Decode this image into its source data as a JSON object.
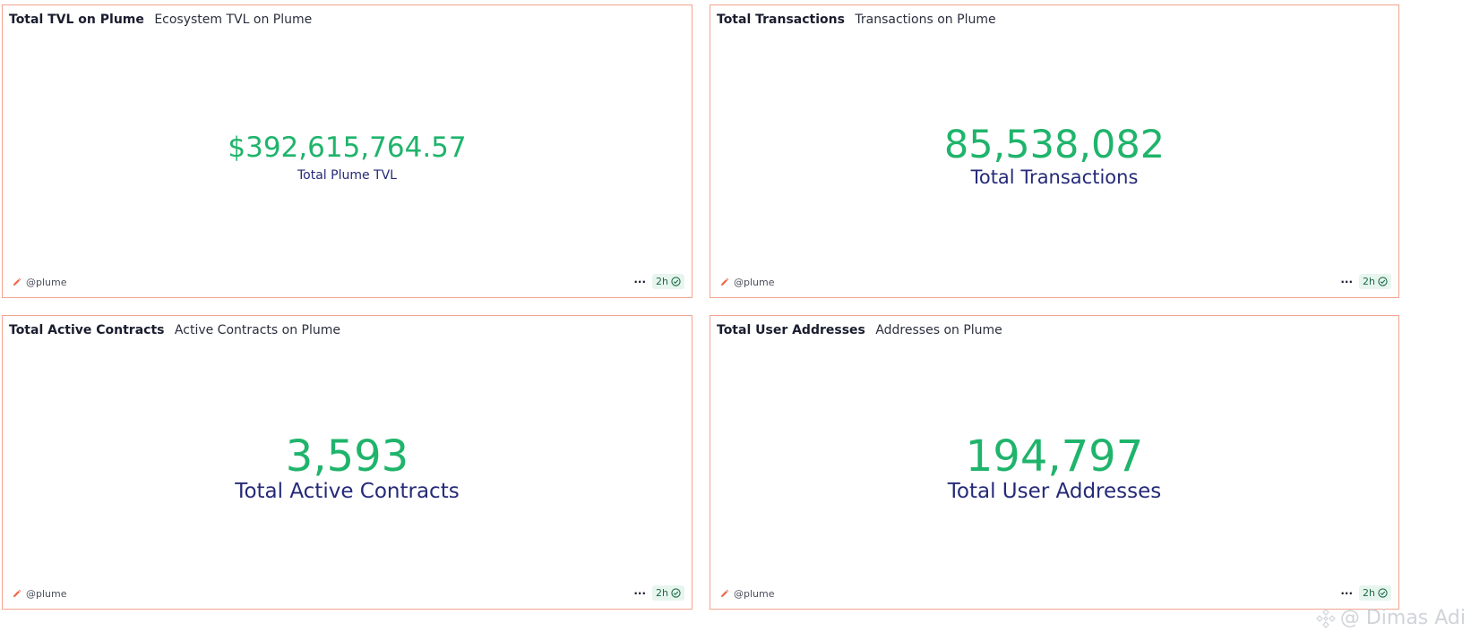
{
  "cards": [
    {
      "title": "Total TVL on Plume",
      "subtitle": "Ecosystem TVL on Plume",
      "value": "$392,615,764.57",
      "label": "Total Plume TVL",
      "author": "@plume",
      "freshness": "2h"
    },
    {
      "title": "Total Transactions",
      "subtitle": "Transactions on Plume",
      "value": "85,538,082",
      "label": "Total Transactions",
      "author": "@plume",
      "freshness": "2h"
    },
    {
      "title": "Total Active Contracts",
      "subtitle": "Active Contracts on Plume",
      "value": "3,593",
      "label": "Total Active Contracts",
      "author": "@plume",
      "freshness": "2h"
    },
    {
      "title": "Total User Addresses",
      "subtitle": "Addresses on Plume",
      "value": "194,797",
      "label": "Total User Addresses",
      "author": "@plume",
      "freshness": "2h"
    }
  ],
  "menu_icon": "more-dots-icon",
  "status_icon": "check-circle-icon",
  "author_icon": "pencil-icon",
  "watermark": "@ Dimas Adi",
  "colors": {
    "border": "#f2a58f",
    "value": "#1fb46b",
    "label": "#252a78",
    "badge_bg": "#e7f5ee"
  }
}
